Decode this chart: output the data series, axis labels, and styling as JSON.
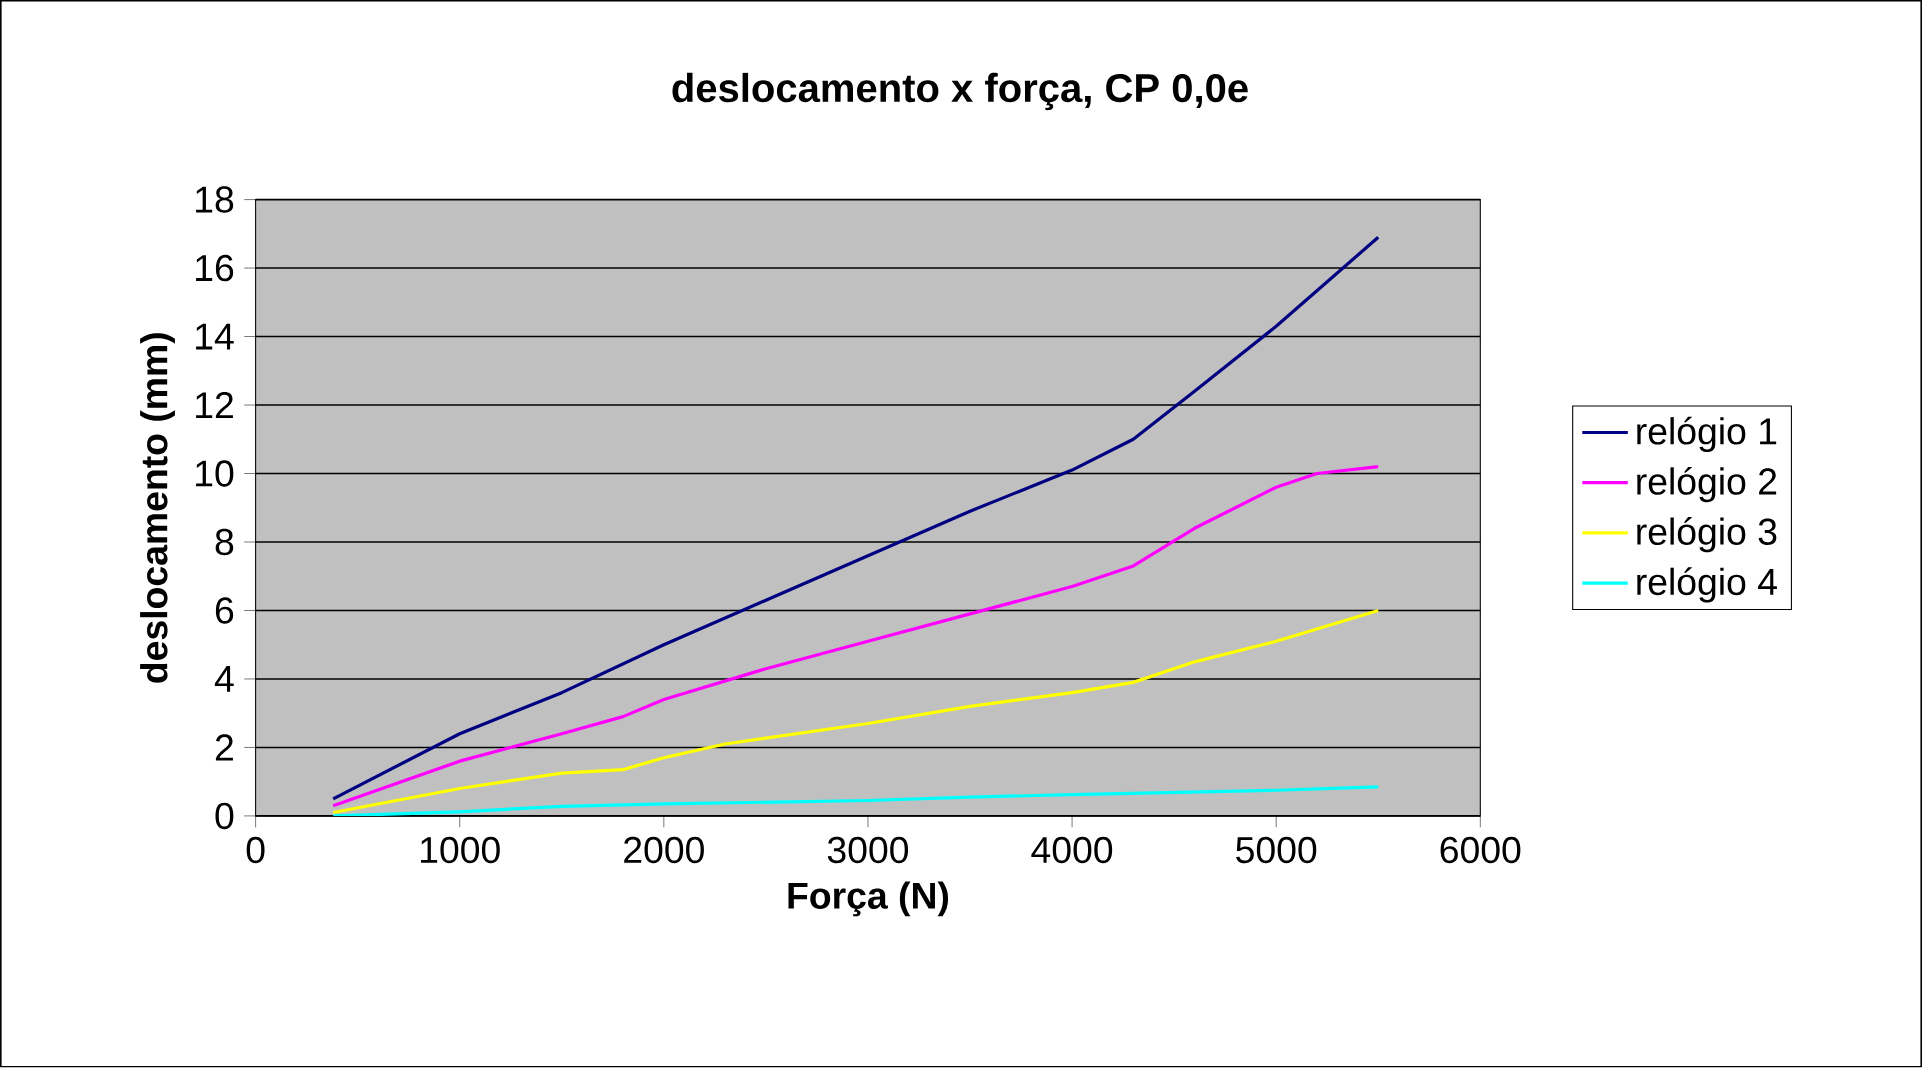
{
  "chart_data": {
    "type": "line",
    "title": "deslocamento x força, CP 0,0e",
    "xlabel": "Força (N)",
    "ylabel": "deslocamento (mm)",
    "xlim": [
      0,
      6000
    ],
    "xticks": [
      0,
      1000,
      2000,
      3000,
      4000,
      5000,
      6000
    ],
    "ylim": [
      0,
      18
    ],
    "yticks": [
      0,
      2,
      4,
      6,
      8,
      10,
      12,
      14,
      16,
      18
    ],
    "grid": "y",
    "legend": "right",
    "marker": "none",
    "line_style": "solid",
    "series": [
      {
        "name": "relógio 1",
        "color": "#000080",
        "x": [
          380,
          1000,
          1500,
          2000,
          2500,
          3000,
          3500,
          4000,
          4300,
          4600,
          5000,
          5500
        ],
        "values": [
          0.5,
          2.4,
          3.6,
          5.0,
          6.3,
          7.6,
          8.9,
          10.1,
          11.0,
          12.4,
          14.3,
          16.9
        ]
      },
      {
        "name": "relógio 2",
        "color": "#ff00ff",
        "x": [
          380,
          1000,
          1500,
          1800,
          2000,
          2500,
          3000,
          3500,
          4000,
          4300,
          4600,
          5000,
          5200,
          5500
        ],
        "values": [
          0.3,
          1.6,
          2.4,
          2.9,
          3.4,
          4.3,
          5.1,
          5.9,
          6.7,
          7.3,
          8.4,
          9.6,
          10.0,
          10.2
        ]
      },
      {
        "name": "relógio 3",
        "color": "#ffff00",
        "x": [
          380,
          1000,
          1500,
          1800,
          2000,
          2300,
          3000,
          3500,
          4000,
          4300,
          4600,
          5000,
          5500
        ],
        "values": [
          0.1,
          0.8,
          1.25,
          1.35,
          1.7,
          2.1,
          2.7,
          3.2,
          3.6,
          3.9,
          4.5,
          5.1,
          6.0
        ]
      },
      {
        "name": "relógio 4",
        "color": "#00ffff",
        "x": [
          380,
          1000,
          1500,
          2000,
          3000,
          3500,
          4000,
          5000,
          5500
        ],
        "values": [
          0.0,
          0.12,
          0.28,
          0.35,
          0.45,
          0.55,
          0.62,
          0.75,
          0.85
        ]
      }
    ]
  }
}
